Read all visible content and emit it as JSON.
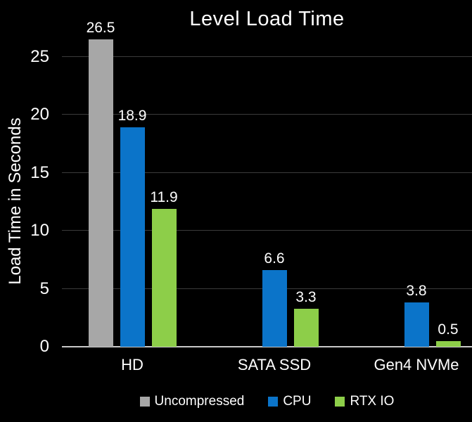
{
  "chart_data": {
    "type": "bar",
    "title": "Level Load Time",
    "ylabel": "Load Time in Seconds",
    "xlabel": "",
    "categories": [
      "HD",
      "SATA SSD",
      "Gen4 NVMe"
    ],
    "series": [
      {
        "name": "Uncompressed",
        "color": "#A7A7A7",
        "values": [
          26.5,
          null,
          null
        ]
      },
      {
        "name": "CPU",
        "color": "#0B74C9",
        "values": [
          18.9,
          6.6,
          3.8
        ]
      },
      {
        "name": "RTX IO",
        "color": "#8DCE49",
        "values": [
          11.9,
          3.3,
          0.5
        ]
      }
    ],
    "yticks": [
      0,
      5,
      10,
      15,
      20,
      25
    ],
    "ylim": [
      0,
      27.5
    ],
    "grid": true,
    "data_labels": true,
    "legend_position": "bottom",
    "background_color": "#000000",
    "text_color": "#FFFFFF",
    "gridline_color": "#3B3B3B",
    "axis_line_color": "#C9C9C9"
  }
}
